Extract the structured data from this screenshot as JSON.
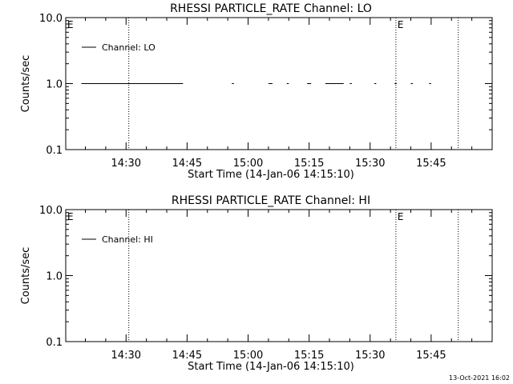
{
  "footer": {
    "timestamp": "13-Oct-2021 16:02"
  },
  "chart_data": [
    {
      "type": "line",
      "title": "RHESSI PARTICLE_RATE Channel: LO",
      "xlabel": "Start Time (14-Jan-06 14:15:10)",
      "ylabel": "Counts/sec",
      "yscale": "log",
      "ylim": [
        0.1,
        10.0
      ],
      "xlim": [
        "14:15:10",
        "16:00:00"
      ],
      "y_ticks": [
        {
          "value": 10.0,
          "label": "10.0"
        },
        {
          "value": 1.0,
          "label": "1.0"
        },
        {
          "value": 0.1,
          "label": "0.1"
        }
      ],
      "x_ticks": [
        {
          "value": "14:30",
          "label": "14:30"
        },
        {
          "value": "14:45",
          "label": "14:45"
        },
        {
          "value": "15:00",
          "label": "15:00"
        },
        {
          "value": "15:15",
          "label": "15:15"
        },
        {
          "value": "15:30",
          "label": "15:30"
        },
        {
          "value": "15:45",
          "label": "15:45"
        }
      ],
      "event_lines": [
        "14:30:40",
        "15:36:20",
        "15:51:40"
      ],
      "flags": [
        {
          "label": "E",
          "time": "14:15:10"
        },
        {
          "label": "E",
          "time": "15:36:20"
        }
      ],
      "grid": false,
      "legend_position": "top-left",
      "series": [
        {
          "name": "Channel: LO",
          "segments": [
            {
              "start": "14:19:00",
              "end": "14:44:00",
              "value": 1.0
            },
            {
              "start": "14:56:00",
              "end": "14:56:30",
              "value": 1.0
            },
            {
              "start": "15:05:00",
              "end": "15:06:00",
              "value": 1.0
            },
            {
              "start": "15:09:30",
              "end": "15:10:00",
              "value": 1.0
            },
            {
              "start": "15:14:30",
              "end": "15:15:30",
              "value": 1.0
            },
            {
              "start": "15:19:00",
              "end": "15:23:30",
              "value": 1.0
            },
            {
              "start": "15:25:00",
              "end": "15:25:30",
              "value": 1.0
            },
            {
              "start": "15:31:00",
              "end": "15:31:30",
              "value": 1.0
            },
            {
              "start": "15:36:00",
              "end": "15:36:30",
              "value": 1.0
            },
            {
              "start": "15:40:00",
              "end": "15:40:30",
              "value": 1.0
            },
            {
              "start": "15:44:30",
              "end": "15:45:00",
              "value": 1.0
            }
          ]
        }
      ]
    },
    {
      "type": "line",
      "title": "RHESSI PARTICLE_RATE Channel: HI",
      "xlabel": "Start Time (14-Jan-06 14:15:10)",
      "ylabel": "Counts/sec",
      "yscale": "log",
      "ylim": [
        0.1,
        10.0
      ],
      "xlim": [
        "14:15:10",
        "16:00:00"
      ],
      "y_ticks": [
        {
          "value": 10.0,
          "label": "10.0"
        },
        {
          "value": 1.0,
          "label": "1.0"
        },
        {
          "value": 0.1,
          "label": "0.1"
        }
      ],
      "x_ticks": [
        {
          "value": "14:30",
          "label": "14:30"
        },
        {
          "value": "14:45",
          "label": "14:45"
        },
        {
          "value": "15:00",
          "label": "15:00"
        },
        {
          "value": "15:15",
          "label": "15:15"
        },
        {
          "value": "15:30",
          "label": "15:30"
        },
        {
          "value": "15:45",
          "label": "15:45"
        }
      ],
      "event_lines": [
        "14:30:40",
        "15:36:20",
        "15:51:40"
      ],
      "flags": [
        {
          "label": "E",
          "time": "14:15:10"
        },
        {
          "label": "E",
          "time": "15:36:20"
        }
      ],
      "grid": false,
      "legend_position": "top-left",
      "series": [
        {
          "name": "Channel: HI",
          "segments": []
        }
      ]
    }
  ]
}
